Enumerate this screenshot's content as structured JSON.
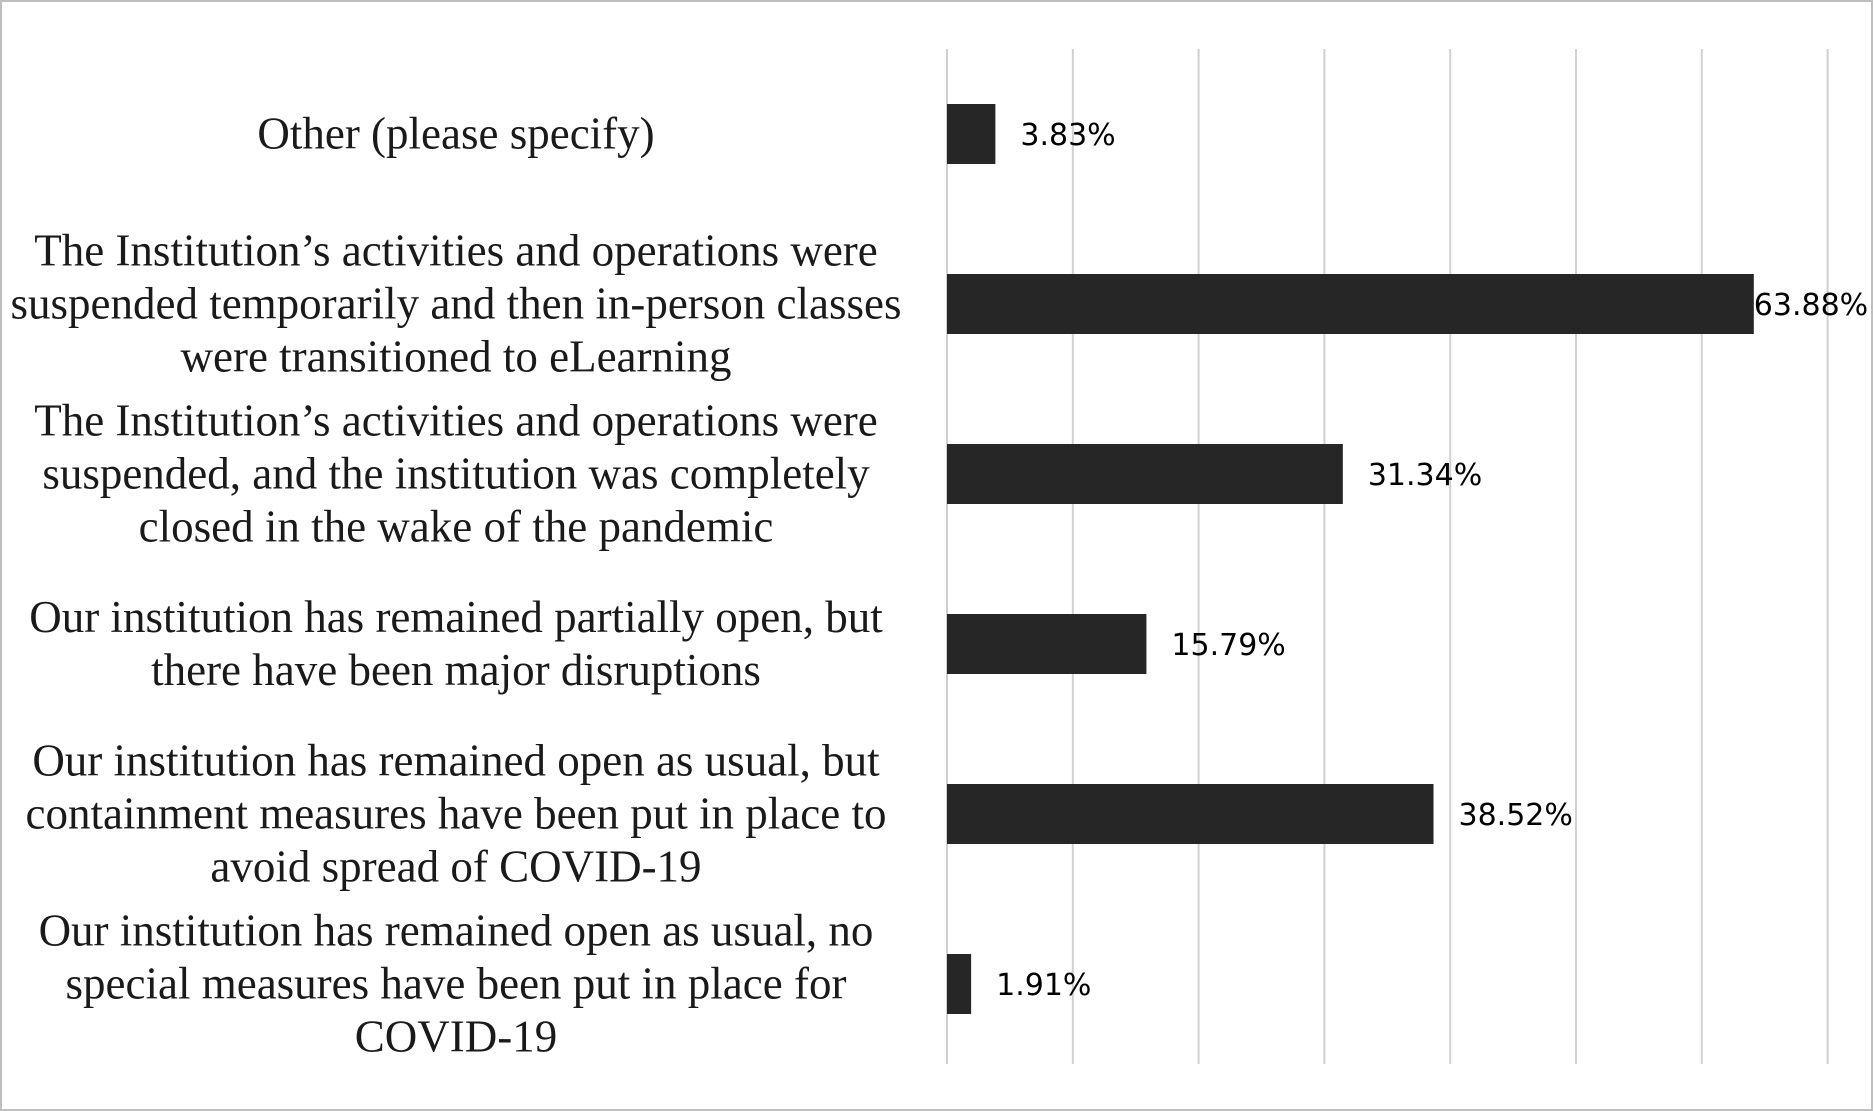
{
  "chart_data": {
    "type": "bar",
    "orientation": "horizontal",
    "categories": [
      "Other (please specify)",
      "The Institution’s activities and operations were suspended temporarily and then in-person classes were transitioned to eLearning",
      "The Institution’s activities and operations were suspended, and the institution was completely closed in the wake of the pandemic",
      "Our institution has remained partially open, but there have been major disruptions",
      "Our institution has remained open as usual, but containment measures have been put in place to avoid spread of COVID-19",
      "Our institution has remained open as usual, no special measures have been put in place for COVID-19"
    ],
    "values": [
      3.83,
      63.88,
      31.34,
      15.79,
      38.52,
      1.91
    ],
    "value_labels": [
      "3.83%",
      "63.88%",
      "31.34%",
      "15.79%",
      "38.52%",
      "1.91%"
    ],
    "xlim": [
      0,
      70
    ],
    "grid": true,
    "gridline_count": 8,
    "bar_color": "#262626",
    "gridline_color": "#d0d0d0"
  }
}
